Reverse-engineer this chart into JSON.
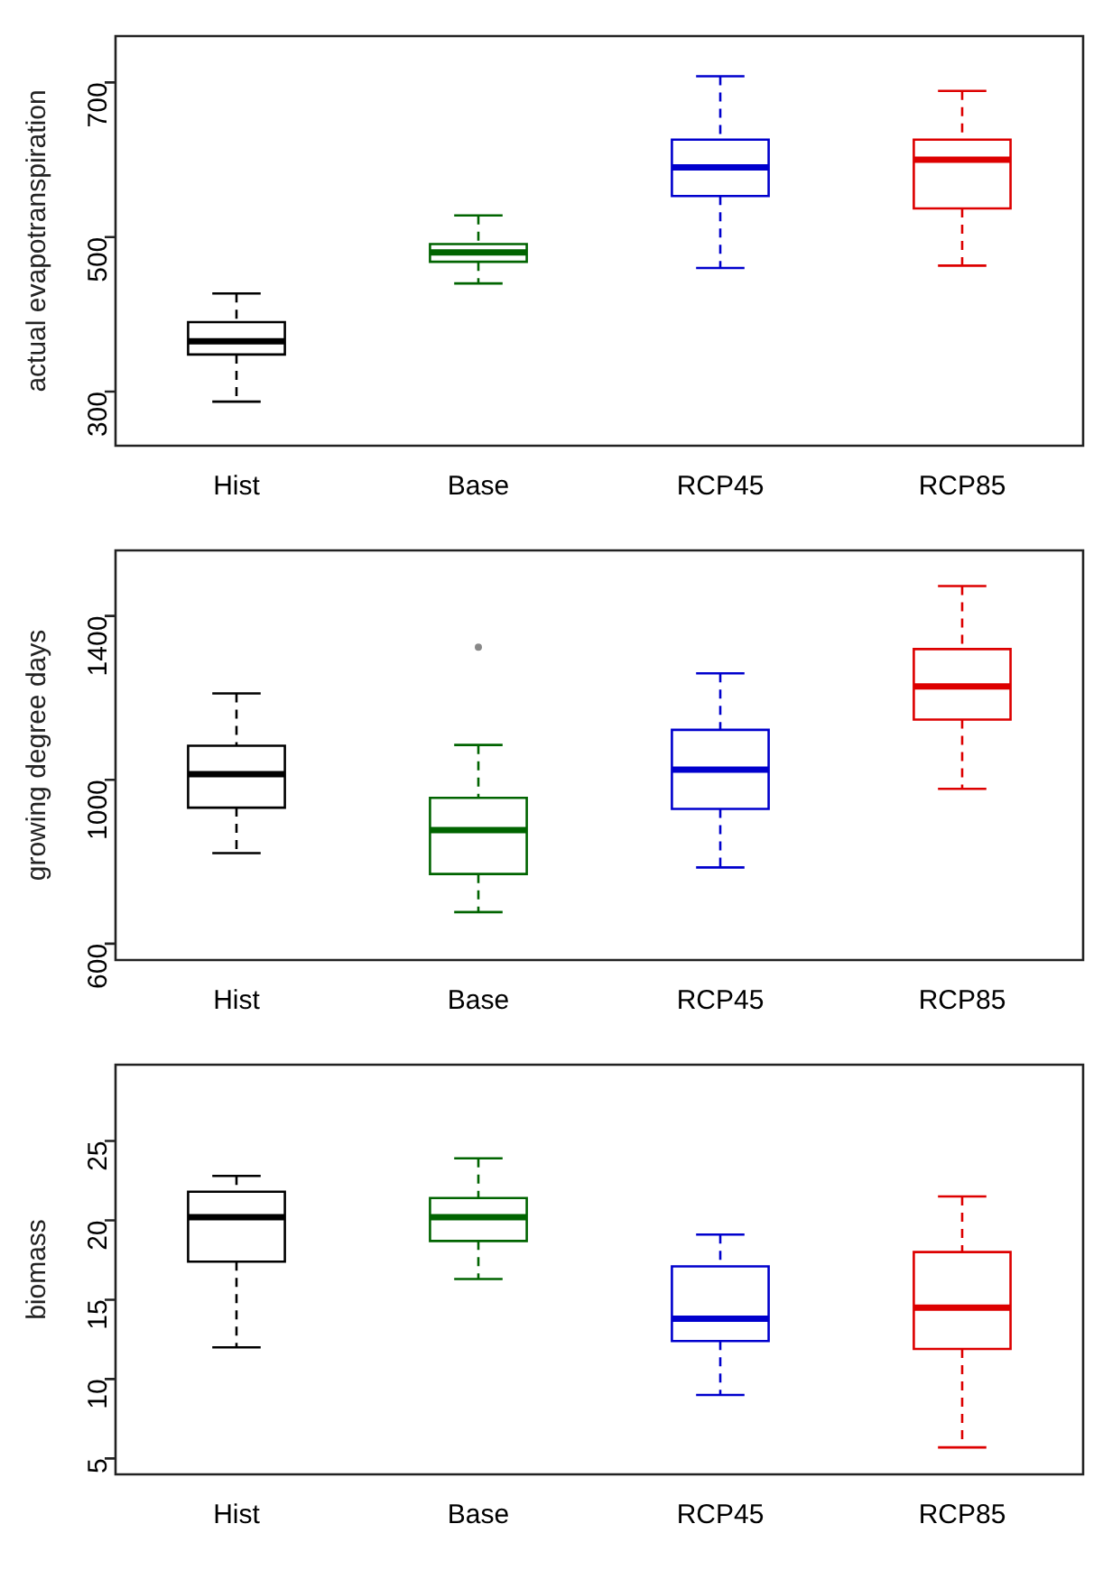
{
  "chart_data": [
    {
      "type": "box",
      "ylabel": "actual evapotranspiration",
      "categories": [
        "Hist",
        "Base",
        "RCP45",
        "RCP85"
      ],
      "colors": [
        "#000000",
        "#006400",
        "#0000cd",
        "#dd0000"
      ],
      "ylim": [
        230,
        760
      ],
      "yticks": [
        300,
        500,
        700
      ],
      "boxes": [
        {
          "low": 287,
          "q1": 348,
          "median": 365,
          "q3": 390,
          "high": 427
        },
        {
          "low": 440,
          "q1": 468,
          "median": 480,
          "q3": 491,
          "high": 528
        },
        {
          "low": 460,
          "q1": 553,
          "median": 590,
          "q3": 626,
          "high": 708
        },
        {
          "low": 463,
          "q1": 537,
          "median": 600,
          "q3": 626,
          "high": 689
        }
      ]
    },
    {
      "type": "box",
      "ylabel": "growing degree days",
      "categories": [
        "Hist",
        "Base",
        "RCP45",
        "RCP85"
      ],
      "colors": [
        "#000000",
        "#006400",
        "#0000cd",
        "#dd0000"
      ],
      "ylim": [
        560,
        1560
      ],
      "yticks": [
        600,
        1000,
        1400
      ],
      "boxes": [
        {
          "low": 821,
          "q1": 932,
          "median": 1014,
          "q3": 1083,
          "high": 1211
        },
        {
          "low": 677,
          "q1": 770,
          "median": 877,
          "q3": 956,
          "high": 1085,
          "outliers": [
            1324
          ]
        },
        {
          "low": 786,
          "q1": 929,
          "median": 1025,
          "q3": 1122,
          "high": 1260
        },
        {
          "low": 978,
          "q1": 1147,
          "median": 1228,
          "q3": 1319,
          "high": 1473
        }
      ]
    },
    {
      "type": "box",
      "ylabel": "biomass",
      "categories": [
        "Hist",
        "Base",
        "RCP45",
        "RCP85"
      ],
      "colors": [
        "#000000",
        "#006400",
        "#0000cd",
        "#dd0000"
      ],
      "ylim": [
        4,
        29.8
      ],
      "yticks": [
        5,
        10,
        15,
        20,
        25
      ],
      "boxes": [
        {
          "low": 12.0,
          "q1": 17.4,
          "median": 20.2,
          "q3": 21.8,
          "high": 22.8
        },
        {
          "low": 16.3,
          "q1": 18.7,
          "median": 20.2,
          "q3": 21.4,
          "high": 23.9
        },
        {
          "low": 9.0,
          "q1": 12.4,
          "median": 13.8,
          "q3": 17.1,
          "high": 19.1
        },
        {
          "low": 5.7,
          "q1": 11.9,
          "median": 14.5,
          "q3": 18.0,
          "high": 21.5
        }
      ]
    }
  ]
}
